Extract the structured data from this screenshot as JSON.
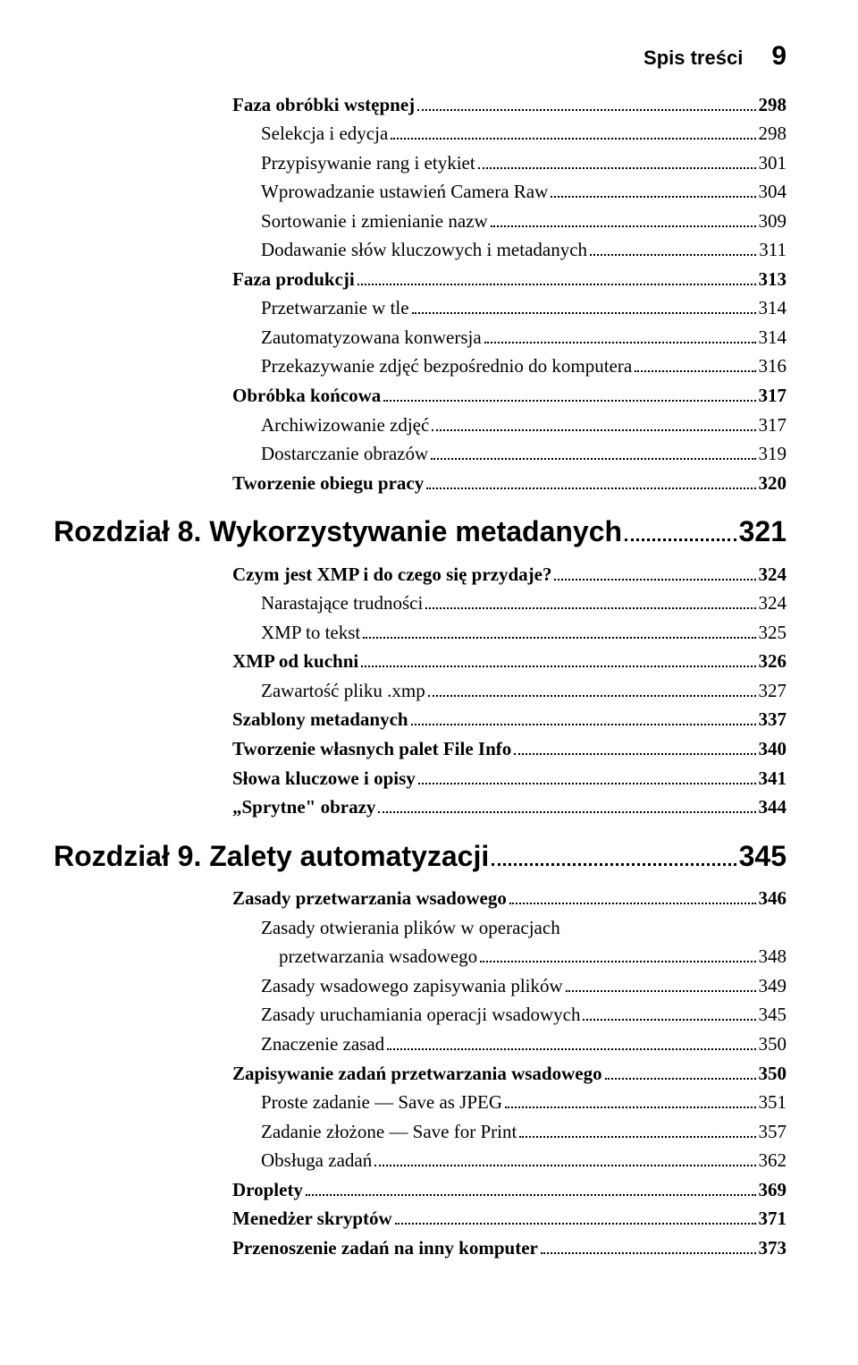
{
  "header": {
    "title": "Spis treści",
    "page": "9"
  },
  "block1": [
    {
      "label": "Faza obróbki wstępnej",
      "page": "298",
      "level": 2,
      "bold": true
    },
    {
      "label": "Selekcja i edycja",
      "page": "298",
      "level": 3
    },
    {
      "label": "Przypisywanie rang i etykiet",
      "page": "301",
      "level": 3
    },
    {
      "label": "Wprowadzanie ustawień Camera Raw",
      "page": "304",
      "level": 3
    },
    {
      "label": "Sortowanie i zmienianie nazw",
      "page": "309",
      "level": 3
    },
    {
      "label": "Dodawanie słów kluczowych i metadanych",
      "page": "311",
      "level": 3
    },
    {
      "label": "Faza produkcji",
      "page": "313",
      "level": 2,
      "bold": true
    },
    {
      "label": "Przetwarzanie w tle",
      "page": "314",
      "level": 3
    },
    {
      "label": "Zautomatyzowana konwersja",
      "page": "314",
      "level": 3
    },
    {
      "label": "Przekazywanie zdjęć bezpośrednio do komputera",
      "page": "316",
      "level": 3
    },
    {
      "label": "Obróbka końcowa",
      "page": "317",
      "level": 2,
      "bold": true
    },
    {
      "label": "Archiwizowanie zdjęć",
      "page": "317",
      "level": 3
    },
    {
      "label": "Dostarczanie obrazów",
      "page": "319",
      "level": 3
    },
    {
      "label": "Tworzenie obiegu pracy",
      "page": "320",
      "level": 2,
      "bold": true
    }
  ],
  "chapter8": {
    "label": "Rozdział 8. Wykorzystywanie metadanych",
    "page": "321"
  },
  "block2": [
    {
      "label": "Czym jest XMP i do czego się przydaje?",
      "page": "324",
      "level": 2,
      "bold": true
    },
    {
      "label": "Narastające trudności",
      "page": "324",
      "level": 3
    },
    {
      "label": "XMP to tekst",
      "page": "325",
      "level": 3
    },
    {
      "label": "XMP od kuchni",
      "page": "326",
      "level": 2,
      "bold": true
    },
    {
      "label": "Zawartość pliku .xmp",
      "page": "327",
      "level": 3
    },
    {
      "label": "Szablony metadanych",
      "page": "337",
      "level": 2,
      "bold": true
    },
    {
      "label": "Tworzenie własnych palet File Info",
      "page": "340",
      "level": 2,
      "bold": true
    },
    {
      "label": "Słowa kluczowe i opisy",
      "page": "341",
      "level": 2,
      "bold": true
    },
    {
      "label": "„Sprytne\" obrazy",
      "page": "344",
      "level": 2,
      "bold": true
    }
  ],
  "chapter9": {
    "label": "Rozdział 9. Zalety automatyzacji",
    "page": "345"
  },
  "block3": [
    {
      "label": "Zasady przetwarzania wsadowego",
      "page": "346",
      "level": 2,
      "bold": true
    },
    {
      "label": "Zasady otwierania plików w operacjach",
      "page": "",
      "level": 3,
      "nodots": true
    },
    {
      "label": "przetwarzania wsadowego",
      "page": "348",
      "level": 3,
      "cont": true
    },
    {
      "label": "Zasady wsadowego zapisywania plików",
      "page": "349",
      "level": 3
    },
    {
      "label": "Zasady uruchamiania operacji wsadowych",
      "page": "345",
      "level": 3
    },
    {
      "label": "Znaczenie zasad",
      "page": "350",
      "level": 3
    },
    {
      "label": "Zapisywanie zadań przetwarzania wsadowego",
      "page": "350",
      "level": 2,
      "bold": true
    },
    {
      "label": "Proste zadanie — Save as JPEG",
      "page": "351",
      "level": 3
    },
    {
      "label": "Zadanie złożone — Save for Print",
      "page": "357",
      "level": 3
    },
    {
      "label": "Obsługa zadań",
      "page": "362",
      "level": 3
    },
    {
      "label": "Droplety",
      "page": "369",
      "level": 2,
      "bold": true
    },
    {
      "label": "Menedżer skryptów",
      "page": "371",
      "level": 2,
      "bold": true
    },
    {
      "label": "Przenoszenie zadań na inny komputer",
      "page": "373",
      "level": 2,
      "bold": true
    }
  ]
}
